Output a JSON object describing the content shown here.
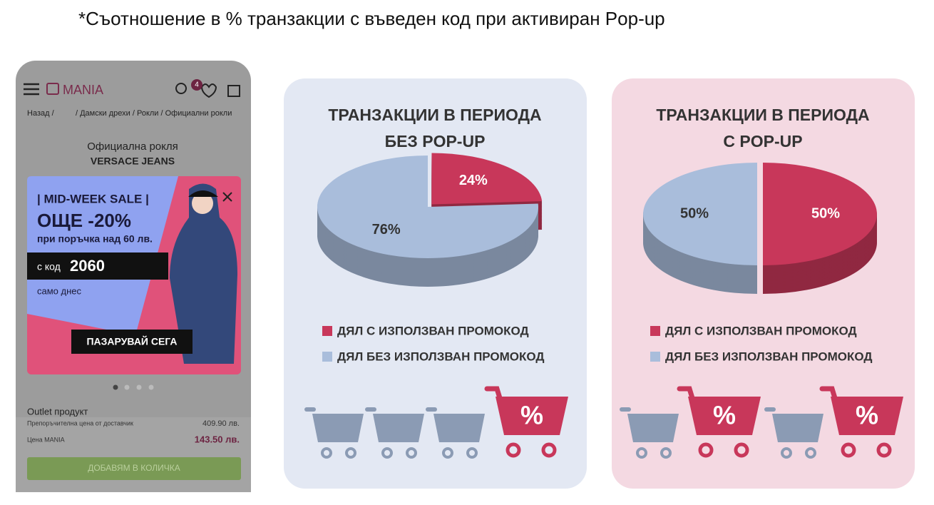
{
  "title": "*Съотношение в % транзакции с въведен код при активиран Pop-up",
  "cart_sign": "%",
  "phone": {
    "logo": "MANIA",
    "badge": "4",
    "breadcrumb_back": "Назад /",
    "breadcrumb_path": "/ Дамски дрехи / Рокли / Официални рокли",
    "product_type": "Официална рокля",
    "brand": "VERSACE JEANS",
    "banner": {
      "sale": "| MID-WEEK SALE |",
      "discount": "ОЩЕ -20%",
      "condition": "при поръчка над 60 лв.",
      "code_label": "с код",
      "code": "2060",
      "note": "само днес",
      "button": "ПАЗАРУВАЙ СЕГА"
    },
    "outlet": "Outlet продукт",
    "rrp_label": "Препоръчителна цена от доставчик",
    "rrp": "409.90 лв.",
    "price_label": "Цена MANIA",
    "price": "143.50 лв.",
    "add_button": "ДОБАВЯМ В КОЛИЧКА"
  },
  "chart_data": [
    {
      "type": "pie",
      "title": "ТРАНЗАКЦИИ В ПЕРИОДА",
      "subtitle": "БЕЗ POP-UP",
      "categories": [
        "ДЯЛ С ИЗПОЛЗВАН ПРОМОКОД",
        "ДЯЛ БЕЗ ИЗПОЛЗВАН ПРОМОКОД"
      ],
      "values": [
        24,
        76
      ],
      "value_labels": [
        "24%",
        "76%"
      ],
      "colors": [
        "#c8375a",
        "#a9bddb"
      ]
    },
    {
      "type": "pie",
      "title": "ТРАНЗАКЦИИ В ПЕРИОДА",
      "subtitle": "С POP-UP",
      "categories": [
        "ДЯЛ С ИЗПОЛЗВАН ПРОМОКОД",
        "ДЯЛ БЕЗ ИЗПОЛЗВАН ПРОМОКОД"
      ],
      "values": [
        50,
        50
      ],
      "value_labels": [
        "50%",
        "50%"
      ],
      "colors": [
        "#c8375a",
        "#a9bddb"
      ]
    }
  ]
}
